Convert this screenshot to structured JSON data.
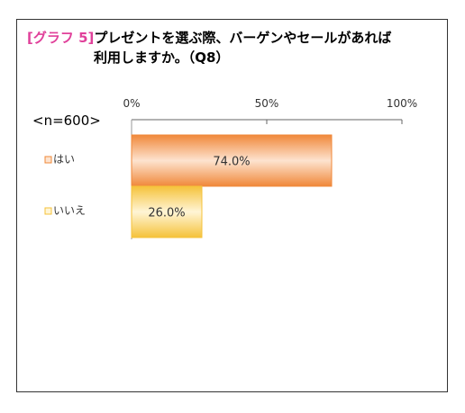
{
  "title": {
    "tag": "[グラフ 5]",
    "text_line1": "プレゼントを選ぶ際、バーゲンやセールがあれば",
    "text_line2": "利用しますか。（Q8）"
  },
  "n_label": "<n=600>",
  "colors": {
    "yes_bar": "#f0883a",
    "yes_light": "#fde3cf",
    "no_bar": "#f5c23a",
    "no_light": "#fff5d6",
    "tag": "#e0409a"
  },
  "chart_data": {
    "type": "bar",
    "orientation": "horizontal",
    "categories": [
      "はい",
      "いいえ"
    ],
    "values": [
      74.0,
      26.0
    ],
    "value_labels": [
      "74.0%",
      "26.0%"
    ],
    "xlim": [
      0,
      100
    ],
    "ticks": [
      0,
      50,
      100
    ],
    "tick_labels": [
      "0%",
      "50%",
      "100%"
    ],
    "grid": false,
    "legend": "none",
    "title": "[グラフ 5]プレゼントを選ぶ際、バーゲンやセールがあれば利用しますか。（Q8）"
  }
}
